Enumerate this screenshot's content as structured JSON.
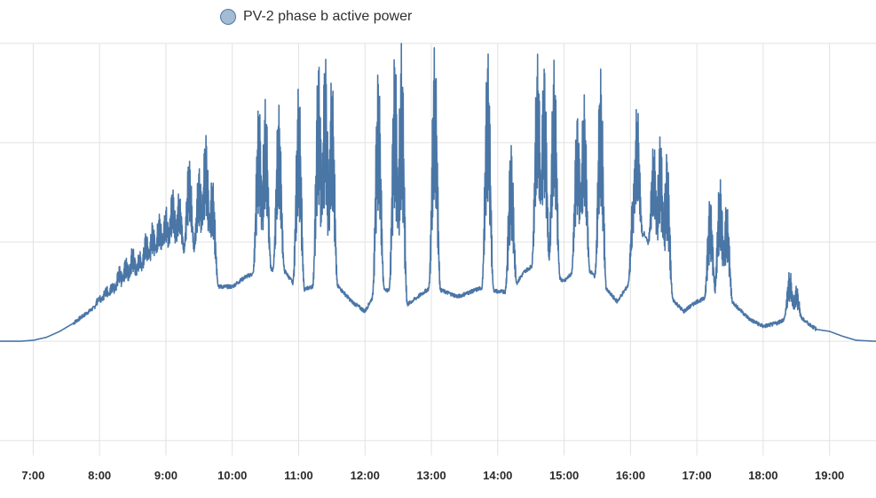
{
  "chart_data": {
    "type": "line",
    "title": "",
    "xlabel": "",
    "ylabel": "",
    "legend_position": "top",
    "grid": true,
    "colors": {
      "series": "#4a76a6",
      "legend_fill": "#a3bbd3",
      "grid": "#e2e2e2",
      "tick_text": "#2a2a2a"
    },
    "x_ticks": [
      "7:00",
      "8:00",
      "9:00",
      "10:00",
      "11:00",
      "12:00",
      "13:00",
      "14:00",
      "15:00",
      "16:00",
      "17:00",
      "18:00",
      "19:00"
    ],
    "y_levels": [
      -1,
      0,
      1,
      2,
      3
    ],
    "xlim": [
      6.5,
      19.7
    ],
    "ylim": [
      -1.15,
      3.0
    ],
    "series": [
      {
        "name": "PV-2 phase b active power",
        "envelope": {
          "x": [
            6.5,
            6.8,
            7.0,
            7.2,
            7.4,
            7.6,
            7.8,
            8.0,
            8.2,
            8.4,
            8.6,
            8.8,
            9.0,
            9.2,
            9.4,
            9.6,
            9.8,
            10.0,
            10.2,
            10.4,
            10.6,
            10.8,
            11.0,
            11.2,
            11.4,
            11.6,
            11.8,
            12.0,
            12.2,
            12.4,
            12.6,
            12.8,
            13.0,
            13.2,
            13.4,
            13.6,
            13.8,
            14.0,
            14.2,
            14.4,
            14.6,
            14.8,
            15.0,
            15.2,
            15.4,
            15.6,
            15.8,
            16.0,
            16.2,
            16.4,
            16.6,
            16.8,
            17.0,
            17.2,
            17.4,
            17.6,
            17.8,
            18.0,
            18.2,
            18.4,
            18.6,
            18.8,
            19.0,
            19.2,
            19.4,
            19.7
          ],
          "y": [
            0.0,
            0.0,
            0.01,
            0.04,
            0.1,
            0.18,
            0.28,
            0.38,
            0.45,
            0.53,
            0.62,
            0.72,
            0.82,
            0.85,
            0.88,
            0.85,
            0.55,
            0.55,
            0.65,
            0.7,
            0.72,
            0.7,
            0.5,
            0.55,
            0.6,
            0.55,
            0.4,
            0.3,
            0.55,
            0.5,
            0.35,
            0.45,
            0.55,
            0.5,
            0.45,
            0.5,
            0.55,
            0.5,
            0.5,
            0.7,
            0.8,
            0.7,
            0.6,
            0.75,
            0.7,
            0.55,
            0.4,
            0.6,
            1.1,
            0.75,
            0.45,
            0.3,
            0.4,
            0.45,
            0.5,
            0.35,
            0.22,
            0.15,
            0.18,
            0.25,
            0.22,
            0.12,
            0.1,
            0.05,
            0.01,
            0.0
          ]
        },
        "spikes": [
          {
            "x": 8.0,
            "y": 0.45
          },
          {
            "x": 8.1,
            "y": 0.55
          },
          {
            "x": 8.2,
            "y": 0.6
          },
          {
            "x": 8.3,
            "y": 0.75
          },
          {
            "x": 8.4,
            "y": 0.85
          },
          {
            "x": 8.5,
            "y": 0.95
          },
          {
            "x": 8.6,
            "y": 0.9
          },
          {
            "x": 8.7,
            "y": 1.1
          },
          {
            "x": 8.8,
            "y": 1.2
          },
          {
            "x": 8.9,
            "y": 1.3
          },
          {
            "x": 9.0,
            "y": 1.35
          },
          {
            "x": 9.1,
            "y": 1.55
          },
          {
            "x": 9.2,
            "y": 1.5
          },
          {
            "x": 9.35,
            "y": 1.85
          },
          {
            "x": 9.5,
            "y": 1.75
          },
          {
            "x": 9.6,
            "y": 2.1
          },
          {
            "x": 9.7,
            "y": 1.65
          },
          {
            "x": 10.4,
            "y": 2.4
          },
          {
            "x": 10.5,
            "y": 2.45
          },
          {
            "x": 10.7,
            "y": 2.4
          },
          {
            "x": 11.0,
            "y": 2.6
          },
          {
            "x": 11.3,
            "y": 2.85
          },
          {
            "x": 11.4,
            "y": 2.9
          },
          {
            "x": 11.5,
            "y": 2.7
          },
          {
            "x": 12.2,
            "y": 2.75
          },
          {
            "x": 12.45,
            "y": 2.95
          },
          {
            "x": 12.55,
            "y": 3.0
          },
          {
            "x": 13.05,
            "y": 3.0
          },
          {
            "x": 13.85,
            "y": 2.95
          },
          {
            "x": 14.2,
            "y": 2.0
          },
          {
            "x": 14.6,
            "y": 2.9
          },
          {
            "x": 14.7,
            "y": 2.8
          },
          {
            "x": 14.85,
            "y": 2.85
          },
          {
            "x": 15.2,
            "y": 2.3
          },
          {
            "x": 15.3,
            "y": 2.5
          },
          {
            "x": 15.55,
            "y": 2.75
          },
          {
            "x": 16.05,
            "y": 1.6
          },
          {
            "x": 16.1,
            "y": 2.4
          },
          {
            "x": 16.35,
            "y": 2.0
          },
          {
            "x": 16.45,
            "y": 2.1
          },
          {
            "x": 16.55,
            "y": 1.9
          },
          {
            "x": 17.2,
            "y": 1.45
          },
          {
            "x": 17.35,
            "y": 1.65
          },
          {
            "x": 17.45,
            "y": 1.4
          },
          {
            "x": 18.4,
            "y": 0.7
          },
          {
            "x": 18.5,
            "y": 0.55
          }
        ]
      }
    ]
  }
}
